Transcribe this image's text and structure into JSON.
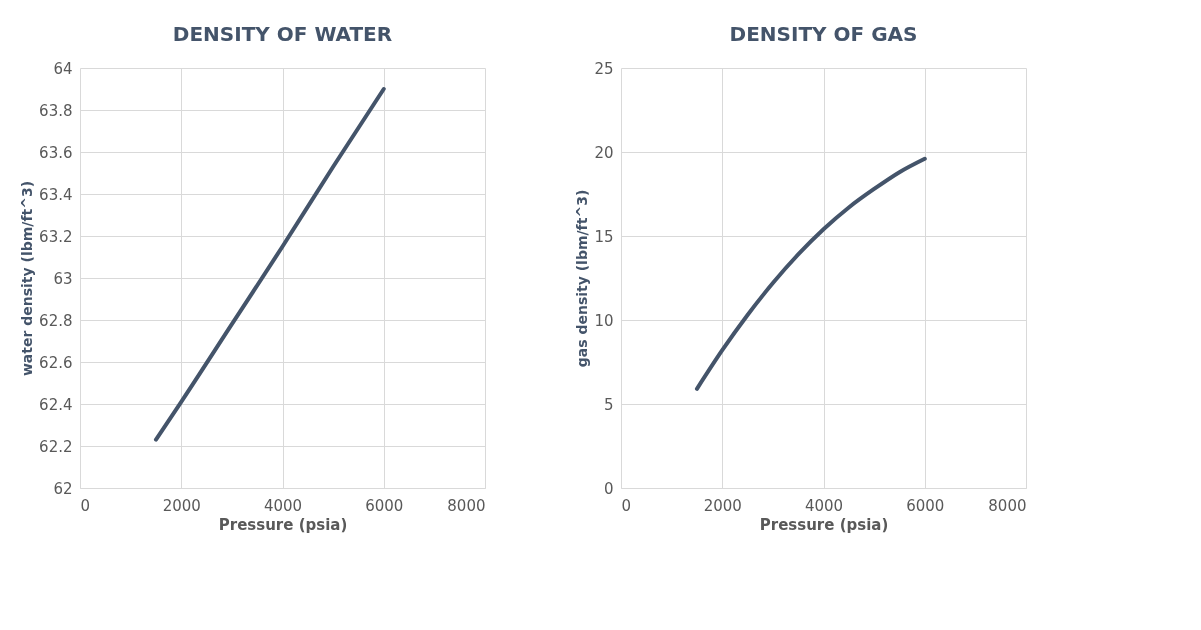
{
  "chart_data": [
    {
      "type": "line",
      "title": "DENSITY OF WATER",
      "xlabel": "Pressure (psia)",
      "ylabel": "water density (lbm/ft^3)",
      "x": [
        1500,
        2000,
        3000,
        4000,
        5000,
        6000
      ],
      "series": [
        {
          "color": "#44546a",
          "values": [
            62.23,
            62.41,
            62.78,
            63.15,
            63.53,
            63.9
          ]
        }
      ],
      "xlim": [
        0,
        8000
      ],
      "ylim": [
        62,
        64
      ],
      "xticks": [
        0,
        2000,
        4000,
        6000,
        8000
      ],
      "yticks": [
        62,
        62.2,
        62.4,
        62.6,
        62.8,
        63,
        63.2,
        63.4,
        63.6,
        63.8,
        64
      ],
      "grid": true
    },
    {
      "type": "line",
      "title": "DENSITY OF GAS",
      "xlabel": "Pressure (psia)",
      "ylabel": "gas density (lbm/ft^3)",
      "x": [
        1500,
        2000,
        2500,
        3000,
        3500,
        4000,
        4500,
        5000,
        5500,
        6000
      ],
      "series": [
        {
          "color": "#44546a",
          "values": [
            5.9,
            8.2,
            10.3,
            12.2,
            13.9,
            15.4,
            16.7,
            17.8,
            18.8,
            19.6
          ]
        }
      ],
      "xlim": [
        0,
        8000
      ],
      "ylim": [
        0,
        25
      ],
      "xticks": [
        0,
        2000,
        4000,
        6000,
        8000
      ],
      "yticks": [
        0,
        5,
        10,
        15,
        20,
        25
      ],
      "grid": true
    }
  ]
}
